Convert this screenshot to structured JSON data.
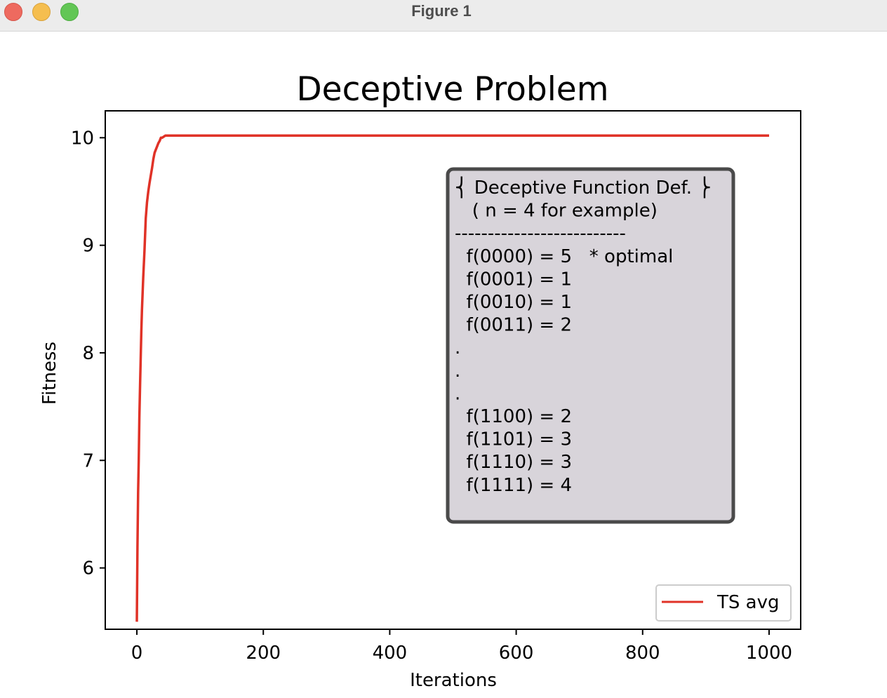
{
  "window": {
    "title": "Figure 1",
    "controls": {
      "close": "close-icon",
      "minimize": "minimize-icon",
      "maximize": "maximize-icon"
    }
  },
  "chart_data": {
    "type": "line",
    "title": "Deceptive Problem",
    "xlabel": "Iterations",
    "ylabel": "Fitness",
    "xlim": [
      -50,
      1050
    ],
    "ylim": [
      5.43,
      10.25
    ],
    "xticks": [
      0,
      200,
      400,
      600,
      800,
      1000
    ],
    "xtick_labels": [
      "0",
      "200",
      "400",
      "600",
      "800",
      "1000"
    ],
    "yticks": [
      6,
      7,
      8,
      9,
      10
    ],
    "ytick_labels": [
      "6",
      "7",
      "8",
      "9",
      "10"
    ],
    "grid": false,
    "legend_position": "lower-right",
    "series": [
      {
        "name": "TS avg",
        "color": "#e03227",
        "x": [
          0,
          1,
          2,
          3,
          4,
          5,
          6,
          7,
          8,
          9,
          10,
          12,
          14,
          16,
          18,
          20,
          22,
          24,
          26,
          28,
          30,
          32,
          34,
          36,
          38,
          40,
          45,
          50,
          100,
          200,
          400,
          600,
          800,
          1000
        ],
        "y": [
          5.5,
          6.2,
          6.7,
          7.0,
          7.4,
          7.7,
          7.95,
          8.2,
          8.4,
          8.55,
          8.7,
          8.95,
          9.25,
          9.4,
          9.5,
          9.58,
          9.65,
          9.72,
          9.8,
          9.86,
          9.89,
          9.92,
          9.95,
          9.97,
          10.0,
          10.0,
          10.02,
          10.02,
          10.02,
          10.02,
          10.02,
          10.02,
          10.02,
          10.02
        ]
      }
    ],
    "annotation": {
      "background": "#d8d4da",
      "border": "#4a4a4a",
      "lines": [
        "⎨ Deceptive Function Def. ⎬",
        "   ( n = 4 for example)",
        "--------------------------",
        "  f(0000) = 5   * optimal",
        "  f(0001) = 1",
        "  f(0010) = 1",
        "  f(0011) = 2",
        ".",
        ".",
        ".",
        "  f(1100) = 2",
        "  f(1101) = 3",
        "  f(1110) = 3",
        "  f(1111) = 4"
      ]
    }
  }
}
